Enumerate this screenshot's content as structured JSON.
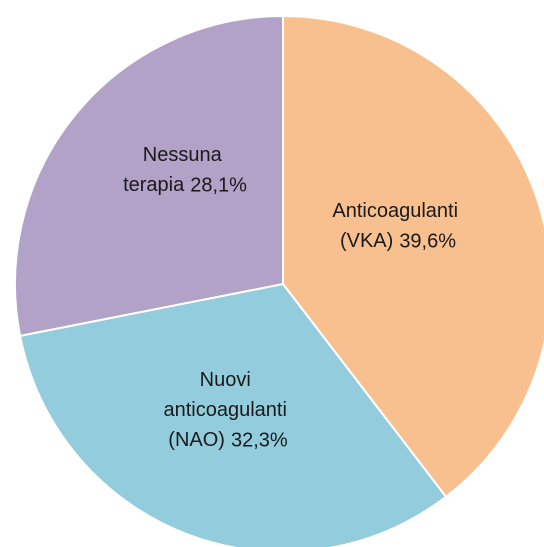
{
  "chart_data": {
    "type": "pie",
    "categories": [
      "Anticoagulanti (VKA)",
      "Nuovi anticoagulanti (NAO)",
      "Nessuna terapia"
    ],
    "values": [
      39.6,
      32.3,
      28.1
    ],
    "value_labels": [
      "39,6%",
      "32,3%",
      "28,1%"
    ],
    "colors": [
      "#f9c08f",
      "#93cddd",
      "#b2a2c7"
    ]
  }
}
